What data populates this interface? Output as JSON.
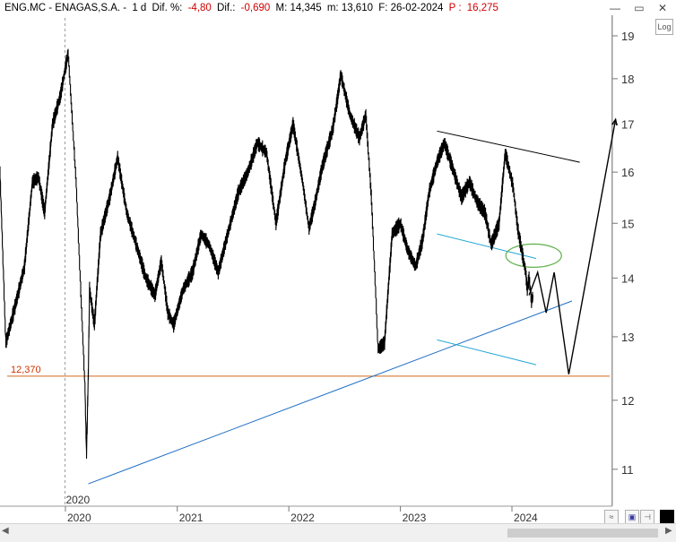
{
  "header": {
    "symbol": "ENG.MC - ENAGAS,S.A. -",
    "timeframe": "1 d",
    "dif_pct_label": "Dif. %:",
    "dif_pct_value": "-4,80",
    "dif_label": "Dif.:",
    "dif_value": "-0,690",
    "max_label": "M: 14,345",
    "min_label": "m: 13,610",
    "date_label": "F: 26-02-2024",
    "price_label": "P :",
    "price_value": "16,275"
  },
  "controls": {
    "log_label": "Log",
    "window_buttons": "— ▭ ✕"
  },
  "colors": {
    "price": "#000000",
    "support_line": "#1f6fc5",
    "channel_lines": "#22a6d6",
    "horizontal_level": "#d2691e",
    "level_label": "#cc3300",
    "ellipse": "#5fb04a",
    "grid": "#d8d8d8"
  },
  "chart_data": {
    "type": "line",
    "title": "ENG.MC - ENAGAS,S.A. - 1 d",
    "ylim": [
      10.5,
      19.5
    ],
    "y_scale": "log",
    "y_ticks": [
      11,
      12,
      13,
      14,
      15,
      16,
      17,
      18,
      19
    ],
    "x_range": [
      "2019-06-01",
      "2024-12-15"
    ],
    "x_ticks": [
      {
        "date": "2020-01-01",
        "label": "2020"
      },
      {
        "date": "2021-01-01",
        "label": "2021"
      },
      {
        "date": "2022-01-01",
        "label": "2022"
      },
      {
        "date": "2023-01-01",
        "label": "2023"
      },
      {
        "date": "2024-01-01",
        "label": "2024"
      }
    ],
    "marker_label": "2020",
    "grid": false,
    "series": [
      {
        "x": [
          "2019-06-01",
          "2019-06-20",
          "2019-07-20",
          "2019-08-20",
          "2019-09-15",
          "2019-10-05",
          "2019-10-25",
          "2019-11-20",
          "2019-12-15",
          "2020-01-10",
          "2020-02-05",
          "2020-02-20",
          "2020-03-05",
          "2020-03-10",
          "2020-03-16",
          "2020-03-20",
          "2020-04-05",
          "2020-04-25",
          "2020-05-25",
          "2020-06-20",
          "2020-07-20",
          "2020-08-20",
          "2020-09-20",
          "2020-10-20",
          "2020-11-10",
          "2020-12-01",
          "2020-12-20",
          "2021-01-20",
          "2021-02-20",
          "2021-03-20",
          "2021-04-15",
          "2021-05-15",
          "2021-06-15",
          "2021-07-20",
          "2021-08-20",
          "2021-09-20",
          "2021-10-20",
          "2021-11-20",
          "2021-12-20",
          "2022-01-15",
          "2022-02-15",
          "2022-03-08",
          "2022-03-28",
          "2022-04-20",
          "2022-05-25",
          "2022-06-08",
          "2022-06-20",
          "2022-07-20",
          "2022-08-20",
          "2022-09-10",
          "2022-09-28",
          "2022-10-10",
          "2022-10-20",
          "2022-11-10",
          "2022-12-05",
          "2023-01-01",
          "2023-01-25",
          "2023-02-20",
          "2023-03-15",
          "2023-04-05",
          "2023-05-01",
          "2023-05-25",
          "2023-06-20",
          "2023-07-20",
          "2023-08-15",
          "2023-09-10",
          "2023-10-05",
          "2023-10-25",
          "2023-11-20",
          "2023-12-10",
          "2024-01-05",
          "2024-01-20",
          "2024-02-05",
          "2024-02-15",
          "2024-02-20",
          "2024-02-26",
          "2024-03-05",
          "2024-03-10"
        ],
        "values": [
          16.0,
          12.9,
          13.5,
          14.2,
          15.8,
          15.9,
          15.2,
          17.0,
          17.6,
          18.6,
          15.8,
          13.8,
          12.2,
          11.2,
          12.4,
          13.8,
          13.2,
          14.8,
          15.5,
          16.3,
          15.2,
          14.6,
          14.0,
          13.7,
          14.3,
          13.4,
          13.2,
          13.8,
          14.1,
          14.8,
          14.6,
          14.1,
          14.8,
          15.6,
          16.0,
          16.6,
          16.4,
          15.0,
          16.2,
          17.0,
          15.8,
          14.9,
          15.4,
          16.1,
          16.9,
          17.5,
          18.1,
          17.2,
          16.7,
          17.2,
          15.5,
          14.0,
          12.8,
          12.9,
          14.8,
          15.0,
          14.5,
          14.2,
          14.7,
          15.6,
          16.2,
          16.6,
          16.1,
          15.5,
          15.8,
          15.4,
          15.2,
          14.6,
          15.0,
          16.4,
          15.7,
          14.9,
          14.4,
          14.1,
          13.8,
          14.0,
          13.6,
          13.7
        ]
      },
      {
        "x": [
          "2024-02-26",
          "2024-03-25",
          "2024-04-22",
          "2024-05-18",
          "2024-07-05",
          "2024-12-05"
        ],
        "values": [
          13.7,
          14.1,
          13.4,
          14.1,
          12.4,
          17.1
        ]
      }
    ],
    "annotations": {
      "horizontal_level": {
        "value": 12.37,
        "label": "12,370"
      },
      "support_trendline": {
        "x": [
          "2020-03-16",
          "2024-07-15"
        ],
        "y": [
          10.8,
          13.6
        ]
      },
      "resistance_trendline": {
        "x": [
          "2023-05-01",
          "2024-08-10"
        ],
        "y": [
          16.85,
          16.2
        ]
      },
      "channel_upper": {
        "x": [
          "2023-05-01",
          "2024-03-20"
        ],
        "y": [
          14.8,
          14.35
        ]
      },
      "channel_lower": {
        "x": [
          "2023-05-01",
          "2024-03-20"
        ],
        "y": [
          12.95,
          12.55
        ]
      },
      "ellipse": {
        "x": "2024-03-12",
        "y": 14.4
      }
    }
  }
}
